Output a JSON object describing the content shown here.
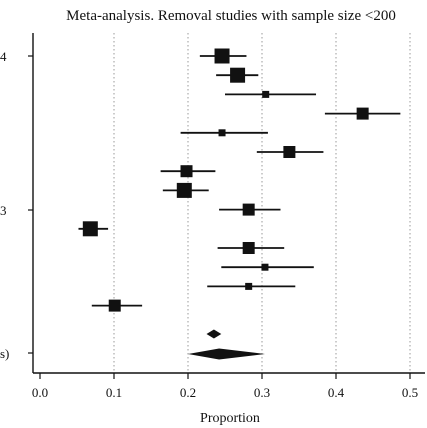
{
  "chart_data": {
    "type": "forest",
    "title": "Meta-analysis. Removal studies with sample size <200",
    "xlabel": "Proportion",
    "xlim": [
      -0.01,
      0.52
    ],
    "xticks": [
      0.0,
      0.1,
      0.2,
      0.3,
      0.4,
      0.5
    ],
    "xtick_labels": [
      "0.0",
      "0.1",
      "0.2",
      "0.3",
      "0.4",
      "0.5"
    ],
    "grid": "vertical dotted",
    "row_labels": [
      "4",
      "3",
      "s)"
    ],
    "studies": [
      {
        "estimate": 0.246,
        "ci": [
          0.216,
          0.279
        ],
        "weight": "large"
      },
      {
        "estimate": 0.267,
        "ci": [
          0.238,
          0.295
        ],
        "weight": "large"
      },
      {
        "estimate": 0.305,
        "ci": [
          0.25,
          0.373
        ],
        "weight": "small"
      },
      {
        "estimate": 0.436,
        "ci": [
          0.385,
          0.487
        ],
        "weight": "medium"
      },
      {
        "estimate": 0.246,
        "ci": [
          0.19,
          0.308
        ],
        "weight": "small"
      },
      {
        "estimate": 0.337,
        "ci": [
          0.293,
          0.383
        ],
        "weight": "medium"
      },
      {
        "estimate": 0.198,
        "ci": [
          0.163,
          0.237
        ],
        "weight": "medium"
      },
      {
        "estimate": 0.195,
        "ci": [
          0.166,
          0.228
        ],
        "weight": "large"
      },
      {
        "estimate": 0.282,
        "ci": [
          0.242,
          0.325
        ],
        "weight": "medium"
      },
      {
        "estimate": 0.068,
        "ci": [
          0.052,
          0.092
        ],
        "weight": "large"
      },
      {
        "estimate": 0.282,
        "ci": [
          0.24,
          0.33
        ],
        "weight": "medium"
      },
      {
        "estimate": 0.304,
        "ci": [
          0.245,
          0.37
        ],
        "weight": "small"
      },
      {
        "estimate": 0.282,
        "ci": [
          0.226,
          0.345
        ],
        "weight": "small"
      },
      {
        "estimate": 0.101,
        "ci": [
          0.07,
          0.138
        ],
        "weight": "medium"
      }
    ],
    "summary": [
      {
        "estimate": 0.235,
        "ci": [
          0.225,
          0.245
        ]
      },
      {
        "estimate": 0.242,
        "ci": [
          0.2,
          0.304
        ]
      }
    ]
  }
}
